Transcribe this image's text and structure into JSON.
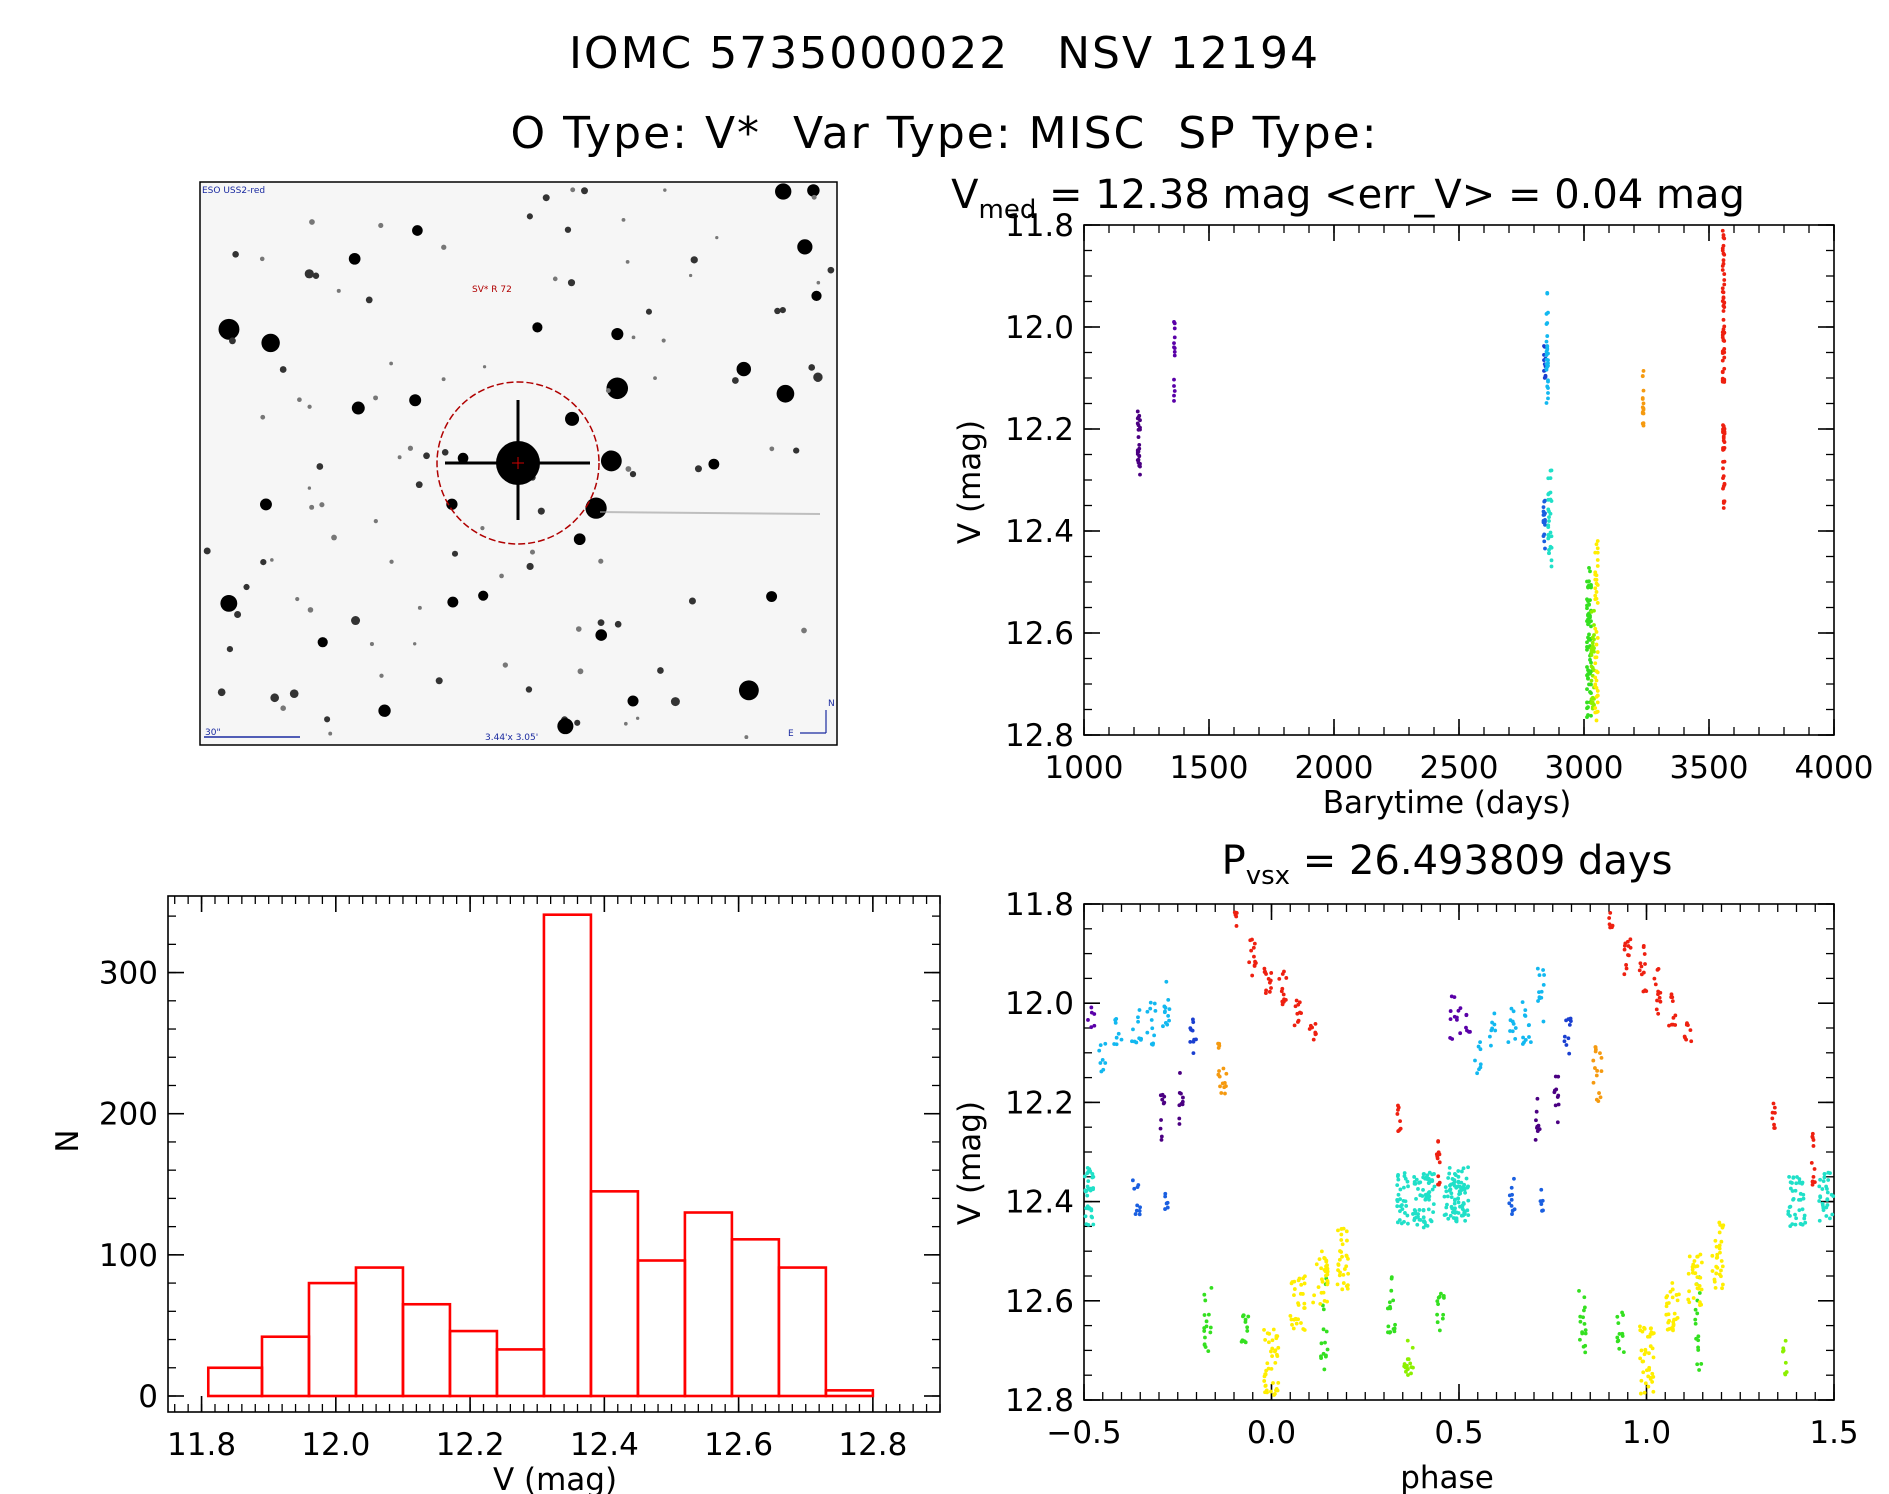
{
  "header": {
    "title_line1": "IOMC 5735000022   NSV 12194",
    "title_line2": "O Type: V*  Var Type: MISC  SP Type:"
  },
  "image_panel": {
    "survey_label": "ESO USS2-red",
    "object_label": "SV* R 72",
    "scale_label": "30\"",
    "fov_label": "3.44'x 3.05'",
    "compass_n": "N",
    "compass_e": "E",
    "circle_color": "#b00000"
  },
  "chart_data": [
    {
      "id": "lightcurve",
      "type": "scatter",
      "title_parts": [
        "V",
        "med",
        " =  12.38 mag <err_V> = 0.04 mag"
      ],
      "xlabel": "Barytime (days)",
      "ylabel": "V (mag)",
      "xlim": [
        1000,
        4000
      ],
      "ylim": [
        12.8,
        11.8
      ],
      "xticks": [
        "1000",
        "1500",
        "2000",
        "2500",
        "3000",
        "3500",
        "4000"
      ],
      "yticks": [
        "11.8",
        "12.0",
        "12.2",
        "12.4",
        "12.6",
        "12.8"
      ],
      "x_minor_step": 100,
      "y_minor_step": 0.05,
      "series": [
        {
          "color": "#4b0082",
          "x": [
            1215,
            1218,
            1221,
            1224
          ],
          "y_range": [
            12.15,
            12.29
          ],
          "n": 26
        },
        {
          "color": "#5a00a8",
          "x": [
            1360,
            1363
          ],
          "y_range": [
            11.96,
            12.15
          ],
          "n": 14
        },
        {
          "color": "#1a3fd0",
          "x": [
            2840,
            2843,
            2846
          ],
          "y_range": [
            12.03,
            12.11
          ],
          "n": 12
        },
        {
          "color": "#1a5fe0",
          "x": [
            2838,
            2841,
            2844
          ],
          "y_range": [
            12.34,
            12.44
          ],
          "n": 18
        },
        {
          "color": "#12b8f0",
          "x": [
            2850,
            2853,
            2856
          ],
          "y_range": [
            11.93,
            12.15
          ],
          "n": 30
        },
        {
          "color": "#20e0c8",
          "x": [
            2857,
            2860,
            2866,
            2870
          ],
          "y_range": [
            12.28,
            12.47
          ],
          "n": 30
        },
        {
          "color": "#34e020",
          "x": [
            3012,
            3016,
            3020,
            3024,
            3028
          ],
          "y_range": [
            12.47,
            12.77
          ],
          "n": 70
        },
        {
          "color": "#8cf000",
          "x": [
            3030,
            3035,
            3040
          ],
          "y_range": [
            12.55,
            12.75
          ],
          "n": 30
        },
        {
          "color": "#ffee00",
          "x": [
            3045,
            3050,
            3055
          ],
          "y_range": [
            12.41,
            12.79
          ],
          "n": 45
        },
        {
          "color": "#f59a10",
          "x": [
            3235,
            3238
          ],
          "y_range": [
            12.08,
            12.22
          ],
          "n": 16
        },
        {
          "color": "#ee2010",
          "x": [
            3555,
            3558,
            3561
          ],
          "y_range": [
            11.81,
            12.11
          ],
          "n": 60
        },
        {
          "color": "#ee2010",
          "x": [
            3556,
            3559,
            3562
          ],
          "y_range": [
            12.19,
            12.37
          ],
          "n": 30
        }
      ]
    },
    {
      "id": "phased",
      "type": "scatter",
      "title_parts": [
        "P",
        "vsx",
        " =  26.493809 days"
      ],
      "xlabel": "phase",
      "ylabel": "V (mag)",
      "xlim": [
        -0.5,
        1.5
      ],
      "ylim": [
        12.8,
        11.8
      ],
      "xticks": [
        "−0.5",
        "0.0",
        "0.5",
        "1.0",
        "1.5"
      ],
      "yticks": [
        "11.8",
        "12.0",
        "12.2",
        "12.4",
        "12.6",
        "12.8"
      ],
      "x_minor_step": 0.05,
      "y_minor_step": 0.05,
      "clusters": [
        {
          "color": "#5a00a8",
          "phase": 0.49,
          "width": 0.03,
          "y_range": [
            11.98,
            12.08
          ],
          "n": 12
        },
        {
          "color": "#5a00a8",
          "phase": 0.52,
          "width": 0.02,
          "y_range": [
            12.0,
            12.06
          ],
          "n": 6
        },
        {
          "color": "#4b0082",
          "phase": 0.71,
          "width": 0.012,
          "y_range": [
            12.17,
            12.28
          ],
          "n": 10
        },
        {
          "color": "#4b0082",
          "phase": 0.76,
          "width": 0.012,
          "y_range": [
            12.14,
            12.25
          ],
          "n": 10
        },
        {
          "color": "#12b8f0",
          "phase": 0.55,
          "width": 0.02,
          "y_range": [
            12.07,
            12.15
          ],
          "n": 8
        },
        {
          "color": "#12b8f0",
          "phase": 0.59,
          "width": 0.02,
          "y_range": [
            12.02,
            12.09
          ],
          "n": 8
        },
        {
          "color": "#12b8f0",
          "phase": 0.64,
          "width": 0.025,
          "y_range": [
            12.0,
            12.08
          ],
          "n": 10
        },
        {
          "color": "#12b8f0",
          "phase": 0.68,
          "width": 0.025,
          "y_range": [
            11.99,
            12.09
          ],
          "n": 12
        },
        {
          "color": "#12b8f0",
          "phase": 0.72,
          "width": 0.02,
          "y_range": [
            11.93,
            12.05
          ],
          "n": 12
        },
        {
          "color": "#1a3fd0",
          "phase": 0.79,
          "width": 0.02,
          "y_range": [
            12.03,
            12.11
          ],
          "n": 10
        },
        {
          "color": "#f59a10",
          "phase": 0.87,
          "width": 0.025,
          "y_range": [
            12.08,
            12.2
          ],
          "n": 16
        },
        {
          "color": "#ee2010",
          "phase": 0.905,
          "width": 0.01,
          "y_range": [
            11.81,
            11.85
          ],
          "n": 6
        },
        {
          "color": "#ee2010",
          "phase": 0.95,
          "width": 0.02,
          "y_range": [
            11.87,
            11.95
          ],
          "n": 12
        },
        {
          "color": "#ee2010",
          "phase": 0.99,
          "width": 0.02,
          "y_range": [
            11.88,
            11.98
          ],
          "n": 12
        },
        {
          "color": "#ee2010",
          "phase": 1.03,
          "width": 0.02,
          "y_range": [
            11.93,
            12.03
          ],
          "n": 12
        },
        {
          "color": "#ee2010",
          "phase": 1.07,
          "width": 0.02,
          "y_range": [
            11.98,
            12.05
          ],
          "n": 10
        },
        {
          "color": "#ee2010",
          "phase": 1.11,
          "width": 0.02,
          "y_range": [
            12.04,
            12.09
          ],
          "n": 8
        },
        {
          "color": "#ee2010",
          "phase": 1.34,
          "width": 0.01,
          "y_range": [
            12.19,
            12.26
          ],
          "n": 8
        },
        {
          "color": "#ee2010",
          "phase": 1.445,
          "width": 0.01,
          "y_range": [
            12.26,
            12.37
          ],
          "n": 12
        },
        {
          "color": "#20e0c8",
          "phase": 0.35,
          "width": 0.03,
          "y_range": [
            12.34,
            12.45
          ],
          "n": 30
        },
        {
          "color": "#20e0c8",
          "phase": 0.42,
          "width": 0.03,
          "y_range": [
            12.34,
            12.46
          ],
          "n": 30
        },
        {
          "color": "#20e0c8",
          "phase": 0.5,
          "width": 0.05,
          "y_range": [
            12.33,
            12.45
          ],
          "n": 60
        },
        {
          "color": "#20e0c8",
          "phase": 1.4,
          "width": 0.05,
          "y_range": [
            12.35,
            12.45
          ],
          "n": 40
        },
        {
          "color": "#20e0c8",
          "phase": 1.48,
          "width": 0.04,
          "y_range": [
            12.34,
            12.44
          ],
          "n": 30
        },
        {
          "color": "#1a5fe0",
          "phase": 0.64,
          "width": 0.02,
          "y_range": [
            12.35,
            12.43
          ],
          "n": 10
        },
        {
          "color": "#1a5fe0",
          "phase": 0.72,
          "width": 0.01,
          "y_range": [
            12.37,
            12.43
          ],
          "n": 6
        },
        {
          "color": "#34e020",
          "phase": 0.32,
          "width": 0.02,
          "y_range": [
            12.55,
            12.68
          ],
          "n": 16
        },
        {
          "color": "#34e020",
          "phase": 0.45,
          "width": 0.02,
          "y_range": [
            12.57,
            12.66
          ],
          "n": 12
        },
        {
          "color": "#34e020",
          "phase": 0.83,
          "width": 0.02,
          "y_range": [
            12.56,
            12.71
          ],
          "n": 16
        },
        {
          "color": "#34e020",
          "phase": 0.93,
          "width": 0.02,
          "y_range": [
            12.62,
            12.72
          ],
          "n": 12
        },
        {
          "color": "#34e020",
          "phase": 1.14,
          "width": 0.02,
          "y_range": [
            12.55,
            12.74
          ],
          "n": 16
        },
        {
          "color": "#8cf000",
          "phase": 0.36,
          "width": 0.015,
          "y_range": [
            12.7,
            12.75
          ],
          "n": 8
        },
        {
          "color": "#8cf000",
          "phase": 1.37,
          "width": 0.015,
          "y_range": [
            12.68,
            12.75
          ],
          "n": 8
        },
        {
          "color": "#ffee00",
          "phase": 1.0,
          "width": 0.04,
          "y_range": [
            12.65,
            12.79
          ],
          "n": 40
        },
        {
          "color": "#ffee00",
          "phase": 1.07,
          "width": 0.04,
          "y_range": [
            12.55,
            12.66
          ],
          "n": 30
        },
        {
          "color": "#ffee00",
          "phase": 1.13,
          "width": 0.04,
          "y_range": [
            12.5,
            12.62
          ],
          "n": 30
        },
        {
          "color": "#ffee00",
          "phase": 1.19,
          "width": 0.03,
          "y_range": [
            12.44,
            12.58
          ],
          "n": 30
        }
      ]
    },
    {
      "id": "histogram",
      "type": "bar",
      "xlabel": "V (mag)",
      "ylabel": "N",
      "xlim": [
        11.75,
        12.9
      ],
      "ylim": [
        0,
        350
      ],
      "xticks": [
        "11.8",
        "12.0",
        "12.2",
        "12.4",
        "12.6",
        "12.8"
      ],
      "yticks": [
        "0",
        "100",
        "200",
        "300"
      ],
      "x_minor_step": 0.02,
      "y_minor_step": 20,
      "bin_edges": [
        11.81,
        11.89,
        11.96,
        12.03,
        12.1,
        12.17,
        12.24,
        12.31,
        12.38,
        12.45,
        12.52,
        12.59,
        12.66,
        12.73,
        12.8
      ],
      "values": [
        20,
        42,
        80,
        91,
        65,
        46,
        33,
        341,
        145,
        96,
        130,
        111,
        91,
        4
      ],
      "color": "#ff0000"
    }
  ]
}
